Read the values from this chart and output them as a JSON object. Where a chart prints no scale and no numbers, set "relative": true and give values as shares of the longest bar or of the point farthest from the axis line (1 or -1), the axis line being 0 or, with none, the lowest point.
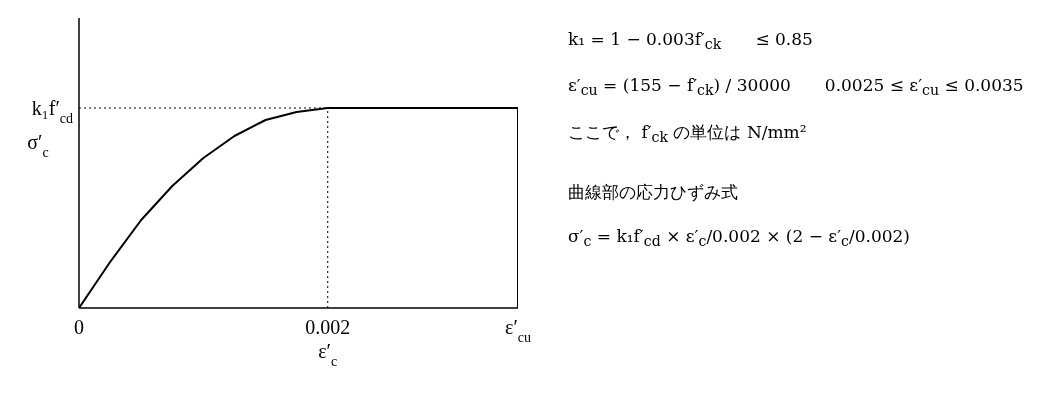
{
  "chart_data": {
    "type": "line",
    "xlabel": "ε′$_{c}$",
    "ylabel": "σ′$_{c}$",
    "relative": true,
    "line_style": "solid",
    "marker": "none",
    "xlim": [
      0,
      0.00353
    ],
    "xticks": [
      {
        "value": 0,
        "label": "0"
      },
      {
        "value": 0.002,
        "label": "0.002"
      },
      {
        "value": 0.00353,
        "label": "ε′$_{cu}$"
      }
    ],
    "series": [
      {
        "color": "#000000",
        "x": [
          0,
          0.00025,
          0.0005,
          0.00075,
          0.001,
          0.00125,
          0.0015,
          0.00175,
          0.002,
          0.00353,
          0.00353
        ],
        "values": [
          0,
          0.23,
          0.44,
          0.61,
          0.75,
          0.86,
          0.94,
          0.98,
          1,
          1,
          0
        ]
      }
    ],
    "ref_lines": [
      {
        "axis": "y",
        "value": 1,
        "label": "k₁f′$_{cd}$",
        "line_style": "dotted",
        "color": "#000000"
      },
      {
        "axis": "x",
        "value": 0.002,
        "label": null,
        "line_style": "dotted",
        "color": "#000000"
      }
    ],
    "annotations": [
      "k₁ = 1 − 0.003f′$_{ck}$　　≤ 0.85",
      "ε′$_{cu}$ = (155 − f′$_{ck}$) / 30000　　0.0025 ≤ ε′$_{cu}$ ≤ 0.0035",
      "ここで， f′$_{ck}$ の単位は N/mm²",
      "曲線部の応力ひずみ式",
      "σ′$_{c}$ = k₁f′$_{cd}$ × ε′$_{c}$/0.002 × (2 − ε′$_{c}$/0.002)"
    ]
  }
}
